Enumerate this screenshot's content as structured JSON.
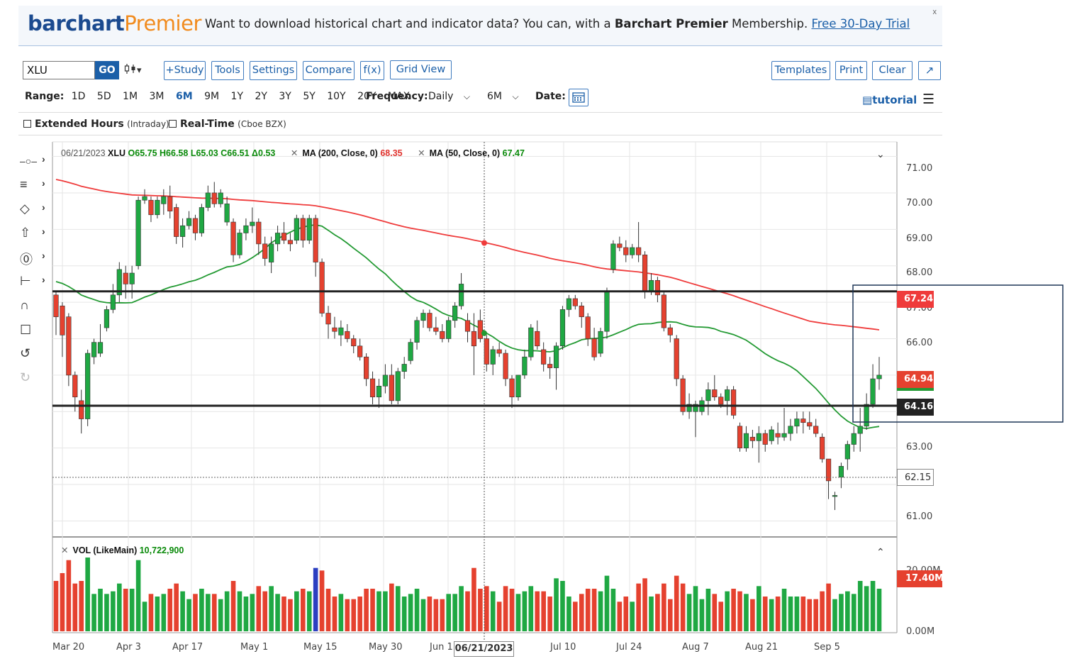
{
  "banner": {
    "logo_primary": "barchart",
    "logo_secondary": "Premier",
    "message_start": "Want to download historical chart and indicator data? You can, with a ",
    "message_bold": "Barchart Premier",
    "message_end": " Membership. ",
    "link": "Free 30-Day Trial",
    "close": "x"
  },
  "toolbar": {
    "symbol_value": "XLU",
    "go_label": "GO",
    "chart_type_icon": "candlestick-icon",
    "chart_type_caret": "▾",
    "study_label": "+Study",
    "tools_label": "Tools",
    "settings_label": "Settings",
    "compare_label": "Compare",
    "fx_label": "f(x)",
    "grid_view_label": "Grid View",
    "templates_label": "Templates",
    "print_label": "Print",
    "clear_label": "Clear",
    "expand_icon": "↗"
  },
  "range": {
    "label": "Range:",
    "options": [
      "1D",
      "5D",
      "1M",
      "3M",
      "6M",
      "9M",
      "1Y",
      "2Y",
      "3Y",
      "5Y",
      "10Y",
      "20Y",
      "MAX"
    ],
    "active": "6M",
    "frequency_label": "Frequency:",
    "frequency_value": "Daily",
    "period_value": "6M",
    "date_label": "Date:",
    "tutorial_label": "tutorial"
  },
  "options": {
    "extended_hours": "Extended Hours",
    "extended_hours_note": "(Intraday)",
    "real_time": "Real-Time",
    "real_time_note": "(Cboe BZX)"
  },
  "legend": {
    "date": "06/21/2023",
    "symbol": "XLU",
    "open": "O65.75",
    "high": "H66.58",
    "low": "L65.03",
    "close": "C66.51",
    "change": "Δ0.53",
    "ma200_label": "MA (200, Close, 0)",
    "ma200_value": "68.35",
    "ma50_label": "MA (50, Close, 0)",
    "ma50_value": "67.47"
  },
  "volume_legend": {
    "label": "VOL (LikeMain)",
    "value": "10,722,900"
  },
  "price_tags": {
    "ma200": "67.24",
    "last": "64.94",
    "line_upper": "64.16",
    "crosshair": "62.15",
    "volume": "17.40M"
  },
  "crosshair_date": "06/21/2023",
  "colors": {
    "up": "#1fa843",
    "down": "#e5412f",
    "ma200": "#ef3b3b",
    "ma50": "#239a33",
    "accent": "#1b5fa8"
  },
  "chart_data": {
    "type": "candlestick",
    "symbol": "XLU",
    "frequency": "Daily",
    "y_ticks": [
      "71.00",
      "70.00",
      "69.00",
      "68.00",
      "67.00",
      "66.00",
      "63.00",
      "61.00"
    ],
    "ylim": [
      60.6,
      71.4
    ],
    "x_ticks": [
      "Mar 20",
      "Apr 3",
      "Apr 17",
      "May 1",
      "May 15",
      "May 30",
      "Jun 1",
      "Jul 10",
      "Jul 24",
      "Aug 7",
      "Aug 21",
      "Sep 5"
    ],
    "horizontal_lines": [
      67.3,
      64.16
    ],
    "volume_ticks": [
      "20.00M",
      "0.00M"
    ],
    "ohlc": [
      [
        67.2,
        67.3,
        66.1,
        66.6
      ],
      [
        66.9,
        67.0,
        65.5,
        66.1
      ],
      [
        66.6,
        66.7,
        64.7,
        65.0
      ],
      [
        65.0,
        65.1,
        64.0,
        64.4
      ],
      [
        64.3,
        64.6,
        63.4,
        63.8
      ],
      [
        63.8,
        65.7,
        63.6,
        65.6
      ],
      [
        65.5,
        66.0,
        65.3,
        65.9
      ],
      [
        65.6,
        66.4,
        65.5,
        65.9
      ],
      [
        66.3,
        66.9,
        66.2,
        66.8
      ],
      [
        66.8,
        67.5,
        66.7,
        67.2
      ],
      [
        67.2,
        68.1,
        67.0,
        67.9
      ],
      [
        67.8,
        68.0,
        67.1,
        67.5
      ],
      [
        67.5,
        68.0,
        67.1,
        67.8
      ],
      [
        68.0,
        69.9,
        67.9,
        69.8
      ],
      [
        69.8,
        70.1,
        69.7,
        69.9
      ],
      [
        69.8,
        69.9,
        69.2,
        69.4
      ],
      [
        69.4,
        69.9,
        69.3,
        69.8
      ],
      [
        69.7,
        70.1,
        69.4,
        69.9
      ],
      [
        69.9,
        70.2,
        69.3,
        69.5
      ],
      [
        69.6,
        69.7,
        68.6,
        68.8
      ],
      [
        68.8,
        69.3,
        68.5,
        69.1
      ],
      [
        69.1,
        69.5,
        69.0,
        69.3
      ],
      [
        69.3,
        69.4,
        68.7,
        68.9
      ],
      [
        68.9,
        69.7,
        68.8,
        69.6
      ],
      [
        69.6,
        70.2,
        69.5,
        70.0
      ],
      [
        70.0,
        70.3,
        69.6,
        69.7
      ],
      [
        69.7,
        70.1,
        69.6,
        70.0
      ],
      [
        69.2,
        69.9,
        69.1,
        69.7
      ],
      [
        69.2,
        69.3,
        68.1,
        68.3
      ],
      [
        68.3,
        69.0,
        68.2,
        68.9
      ],
      [
        68.9,
        69.3,
        68.7,
        69.1
      ],
      [
        69.1,
        69.6,
        68.9,
        69.2
      ],
      [
        69.2,
        69.3,
        68.3,
        68.6
      ],
      [
        68.6,
        68.8,
        68.0,
        68.2
      ],
      [
        68.1,
        68.8,
        67.8,
        68.6
      ],
      [
        68.6,
        69.1,
        68.4,
        68.9
      ],
      [
        68.9,
        69.2,
        68.6,
        68.7
      ],
      [
        68.7,
        68.9,
        68.4,
        68.6
      ],
      [
        68.7,
        69.4,
        68.6,
        69.3
      ],
      [
        69.3,
        69.4,
        68.5,
        68.7
      ],
      [
        68.7,
        69.4,
        68.6,
        69.3
      ],
      [
        69.3,
        69.4,
        67.7,
        68.1
      ],
      [
        68.1,
        68.2,
        66.6,
        66.7
      ],
      [
        66.7,
        66.9,
        66.0,
        66.4
      ],
      [
        66.3,
        66.6,
        66.0,
        66.2
      ],
      [
        66.1,
        66.5,
        65.8,
        66.3
      ],
      [
        66.2,
        66.4,
        65.9,
        66.0
      ],
      [
        66.0,
        66.1,
        65.6,
        65.8
      ],
      [
        65.8,
        66.0,
        65.4,
        65.5
      ],
      [
        65.5,
        65.6,
        64.7,
        64.9
      ],
      [
        64.9,
        65.1,
        64.2,
        64.4
      ],
      [
        64.4,
        64.9,
        64.1,
        64.7
      ],
      [
        64.7,
        65.3,
        64.5,
        65.0
      ],
      [
        65.0,
        65.3,
        64.2,
        64.3
      ],
      [
        64.3,
        65.2,
        64.2,
        65.1
      ],
      [
        65.1,
        65.5,
        64.9,
        65.3
      ],
      [
        65.4,
        66.0,
        65.3,
        65.9
      ],
      [
        65.9,
        66.6,
        65.7,
        66.5
      ],
      [
        66.5,
        66.8,
        66.3,
        66.7
      ],
      [
        66.7,
        66.8,
        66.2,
        66.3
      ],
      [
        66.3,
        66.6,
        66.1,
        66.2
      ],
      [
        66.2,
        66.4,
        65.9,
        66.0
      ],
      [
        66.0,
        66.6,
        65.9,
        66.5
      ],
      [
        66.5,
        67.0,
        66.3,
        66.9
      ],
      [
        66.9,
        67.8,
        66.8,
        67.5
      ],
      [
        66.5,
        66.7,
        65.9,
        66.2
      ],
      [
        66.2,
        66.7,
        65.0,
        65.8
      ],
      [
        66.5,
        66.8,
        65.9,
        66.0
      ],
      [
        66.0,
        66.1,
        65.1,
        65.3
      ],
      [
        65.3,
        65.8,
        65.0,
        65.7
      ],
      [
        65.7,
        65.9,
        65.5,
        65.6
      ],
      [
        65.6,
        65.7,
        64.7,
        64.9
      ],
      [
        64.9,
        65.0,
        64.1,
        64.4
      ],
      [
        64.4,
        65.0,
        64.3,
        65.0
      ],
      [
        65.0,
        65.7,
        64.9,
        65.5
      ],
      [
        65.5,
        66.4,
        65.4,
        66.3
      ],
      [
        66.2,
        66.5,
        65.7,
        65.8
      ],
      [
        65.7,
        65.9,
        65.1,
        65.3
      ],
      [
        65.3,
        65.5,
        64.9,
        65.2
      ],
      [
        65.2,
        65.9,
        64.6,
        65.8
      ],
      [
        65.8,
        66.9,
        65.7,
        66.8
      ],
      [
        66.8,
        67.2,
        66.6,
        67.1
      ],
      [
        67.1,
        67.2,
        66.8,
        66.9
      ],
      [
        66.9,
        67.0,
        66.3,
        66.6
      ],
      [
        66.6,
        66.7,
        65.8,
        66.0
      ],
      [
        66.0,
        66.3,
        65.4,
        65.5
      ],
      [
        65.6,
        66.3,
        65.5,
        66.2
      ],
      [
        66.2,
        67.4,
        66.0,
        67.3
      ],
      [
        67.9,
        68.7,
        67.8,
        68.6
      ],
      [
        68.6,
        68.8,
        68.4,
        68.5
      ],
      [
        68.5,
        68.7,
        68.1,
        68.3
      ],
      [
        68.3,
        68.6,
        68.2,
        68.5
      ],
      [
        68.5,
        69.2,
        68.1,
        68.3
      ],
      [
        68.3,
        68.4,
        67.1,
        67.3
      ],
      [
        67.3,
        67.8,
        67.2,
        67.6
      ],
      [
        67.6,
        67.7,
        67.0,
        67.2
      ],
      [
        67.2,
        67.3,
        66.2,
        66.3
      ],
      [
        66.3,
        66.4,
        65.9,
        66.1
      ],
      [
        66.0,
        66.1,
        64.7,
        64.9
      ],
      [
        64.9,
        65.0,
        63.9,
        64.0
      ],
      [
        64.0,
        64.5,
        63.8,
        64.2
      ],
      [
        64.0,
        64.3,
        63.3,
        64.2
      ],
      [
        64.0,
        64.4,
        63.9,
        64.3
      ],
      [
        64.3,
        64.8,
        63.9,
        64.6
      ],
      [
        64.6,
        65.0,
        64.3,
        64.4
      ],
      [
        64.4,
        64.5,
        64.1,
        64.2
      ],
      [
        64.3,
        64.7,
        63.9,
        64.6
      ],
      [
        64.6,
        64.7,
        63.8,
        63.9
      ],
      [
        63.6,
        63.7,
        62.9,
        63.0
      ],
      [
        63.0,
        63.6,
        62.9,
        63.4
      ],
      [
        63.3,
        63.5,
        63.0,
        63.2
      ],
      [
        63.2,
        63.6,
        62.6,
        63.4
      ],
      [
        63.4,
        63.5,
        62.9,
        63.1
      ],
      [
        63.2,
        63.6,
        63.1,
        63.5
      ],
      [
        63.4,
        63.7,
        63.1,
        63.3
      ],
      [
        63.3,
        64.1,
        63.2,
        63.4
      ],
      [
        63.4,
        63.8,
        63.2,
        63.6
      ],
      [
        63.6,
        64.0,
        63.4,
        63.8
      ],
      [
        63.8,
        64.0,
        63.4,
        63.7
      ],
      [
        63.7,
        64.0,
        63.5,
        63.6
      ],
      [
        63.6,
        63.8,
        63.3,
        63.4
      ],
      [
        63.3,
        63.4,
        62.6,
        62.7
      ],
      [
        62.7,
        62.7,
        61.6,
        62.1
      ],
      [
        61.7,
        61.8,
        61.3,
        61.7
      ],
      [
        62.2,
        62.6,
        61.9,
        62.5
      ],
      [
        62.7,
        63.2,
        62.4,
        63.1
      ],
      [
        63.1,
        63.6,
        62.9,
        63.4
      ],
      [
        63.4,
        64.1,
        62.9,
        63.6
      ],
      [
        63.6,
        64.5,
        63.5,
        64.2
      ],
      [
        64.2,
        65.3,
        64.1,
        64.9
      ],
      [
        64.9,
        65.5,
        64.6,
        65.0
      ]
    ]
  }
}
